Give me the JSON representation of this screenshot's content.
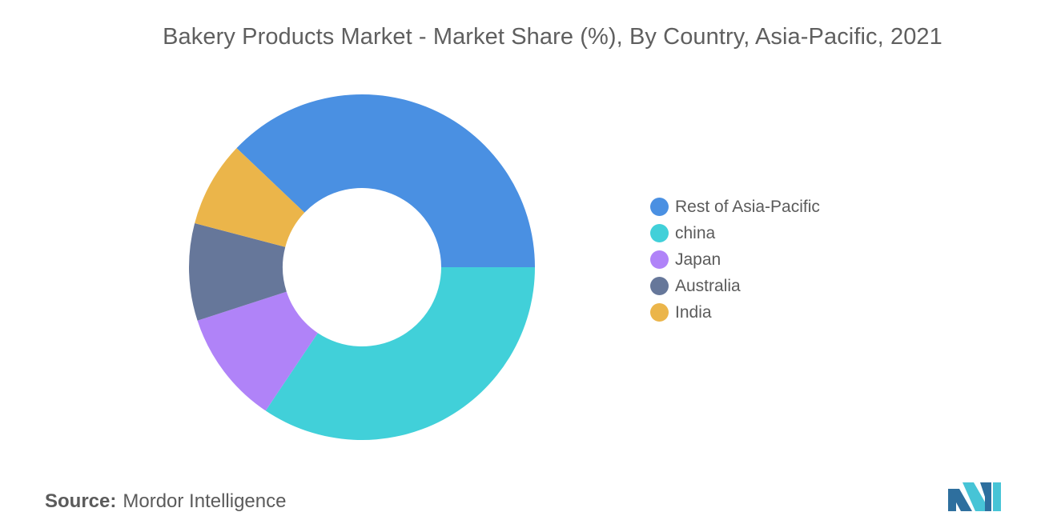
{
  "title": "Bakery Products Market - Market Share (%), By Country, Asia-Pacific, 2021",
  "source": {
    "label": "Source:",
    "value": "Mordor Intelligence"
  },
  "logo": {
    "icon": "mordor-intelligence-logo",
    "colors": [
      "#2e6f9e",
      "#47c4d6"
    ]
  },
  "chart_data": {
    "type": "pie",
    "variant": "donut",
    "title": "Bakery Products Market - Market Share (%), By Country, Asia-Pacific, 2021",
    "legend_position": "right",
    "data_labels": false,
    "series": [
      {
        "name": "Rest of Asia-Pacific",
        "value": 37.9,
        "color": "#4a90e2"
      },
      {
        "name": "china",
        "value": 34.4,
        "color": "#41d0d9"
      },
      {
        "name": "Japan",
        "value": 10.6,
        "color": "#b083f8"
      },
      {
        "name": "Australia",
        "value": 9.1,
        "color": "#66779a"
      },
      {
        "name": "India",
        "value": 8.0,
        "color": "#ebb54a"
      }
    ]
  }
}
